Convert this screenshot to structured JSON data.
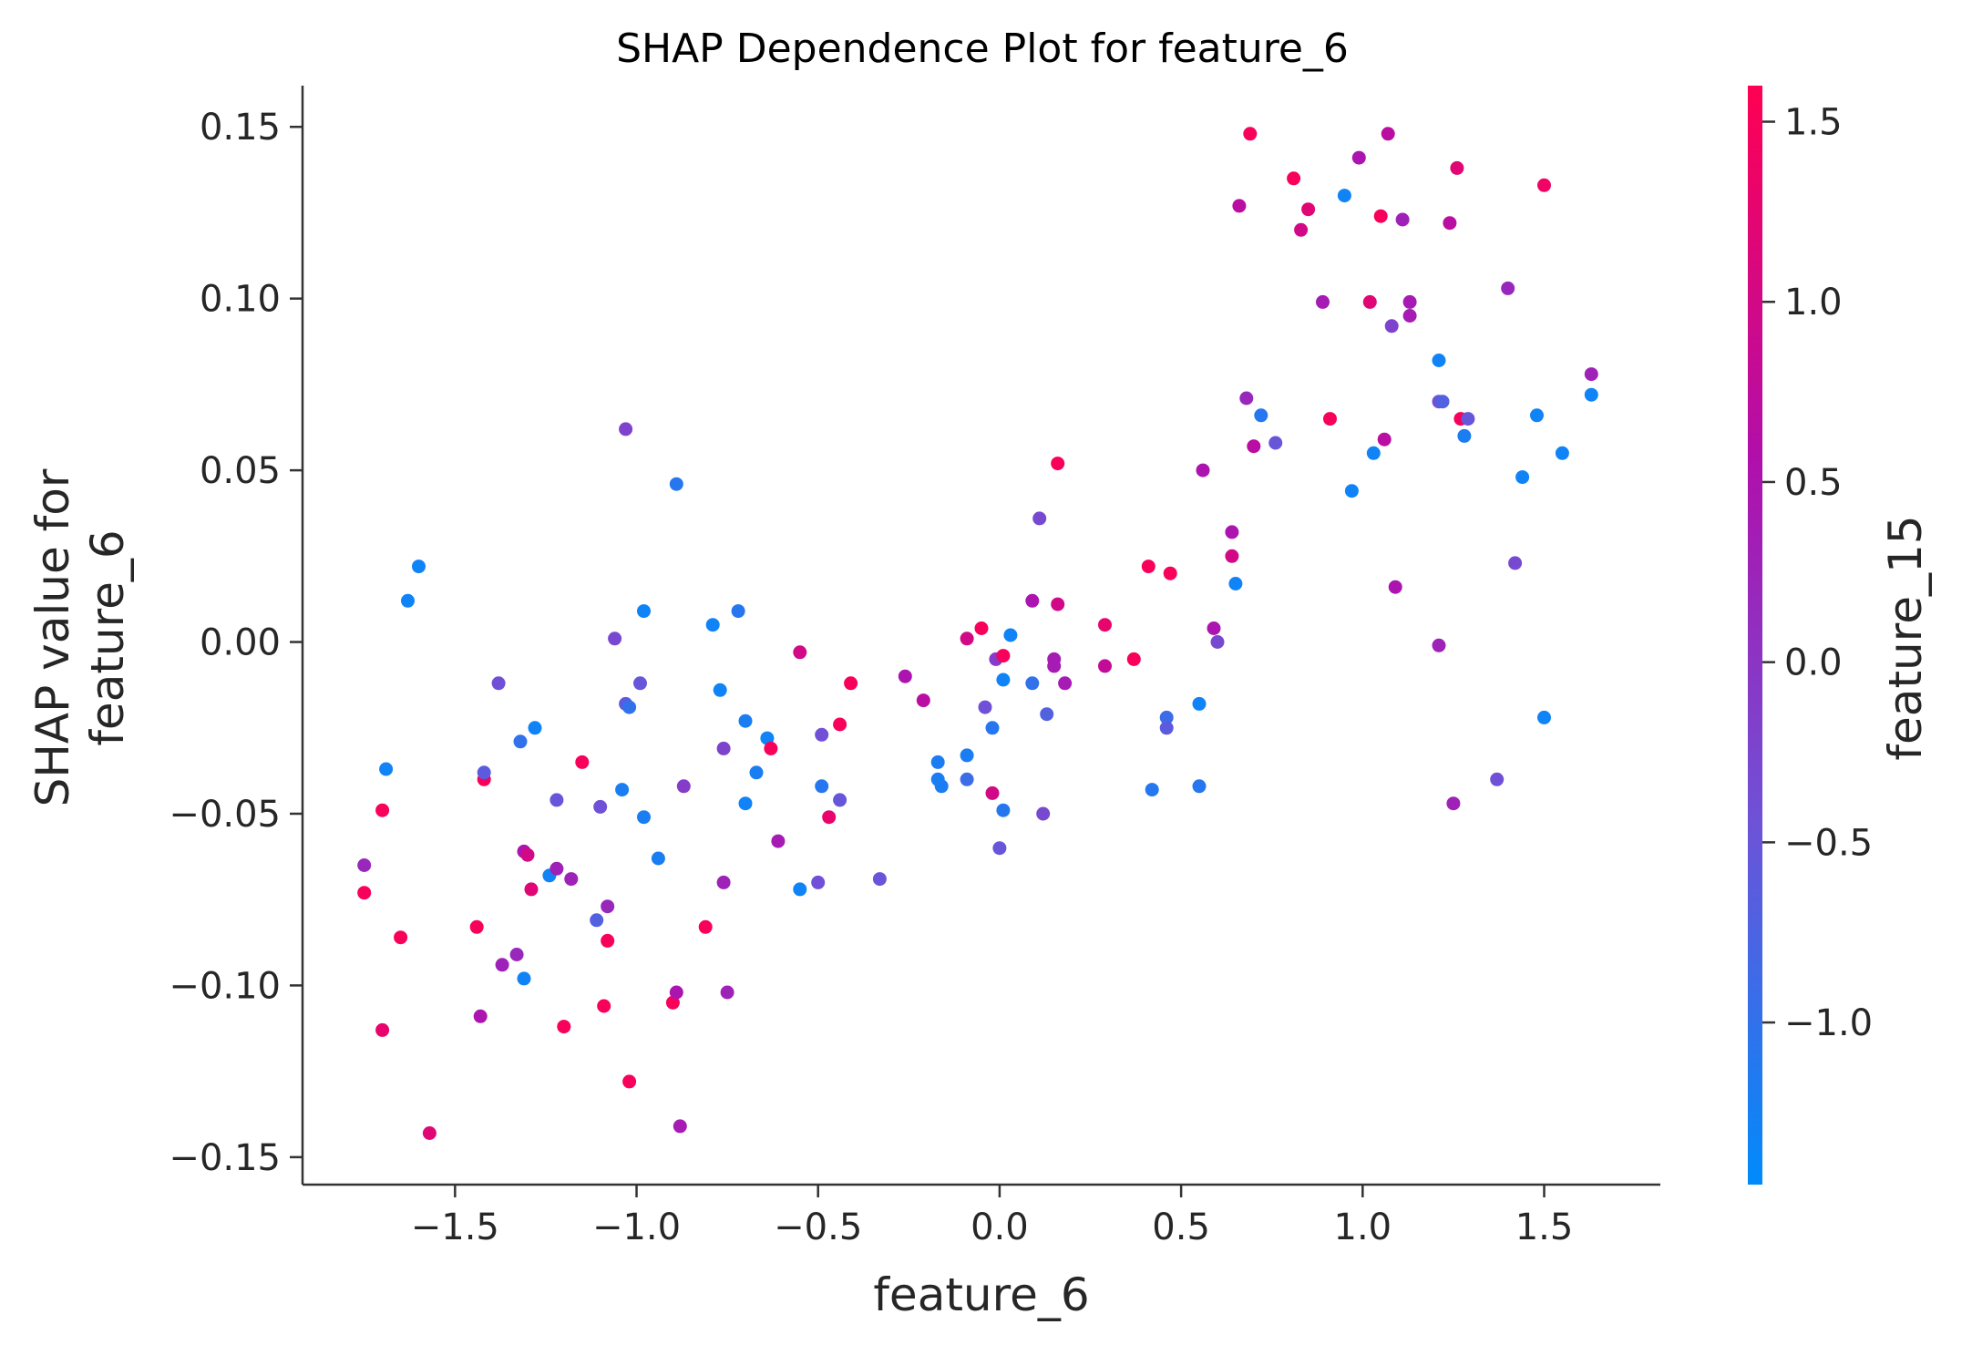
{
  "chart_data": {
    "type": "scatter",
    "title": "SHAP Dependence Plot for feature_6",
    "xlabel": "feature_6",
    "ylabel": [
      "SHAP value for",
      "feature_6"
    ],
    "xlim": [
      -1.92,
      1.82
    ],
    "ylim": [
      -0.158,
      0.162
    ],
    "xticks": [
      -1.5,
      -1.0,
      -0.5,
      0.0,
      0.5,
      1.0,
      1.5
    ],
    "xtick_labels": [
      "−1.5",
      "−1.0",
      "−0.5",
      "0.0",
      "0.5",
      "1.0",
      "1.5"
    ],
    "yticks": [
      0.15,
      0.1,
      0.05,
      0.0,
      -0.05,
      -0.1,
      -0.15
    ],
    "ytick_labels": [
      "0.15",
      "0.10",
      "0.05",
      "0.00",
      "−0.05",
      "−0.10",
      "−0.15"
    ],
    "grid": false,
    "colorbar": {
      "label": "feature_15",
      "range": [
        -1.45,
        1.6
      ],
      "ticks": [
        1.5,
        1.0,
        0.5,
        0.0,
        -0.5,
        -1.0
      ],
      "tick_labels": [
        "1.5",
        "1.0",
        "0.5",
        "0.0",
        "−0.5",
        "−1.0"
      ],
      "colors": [
        "#008bfb",
        "#6e52d7",
        "#b10fab",
        "#ff0052"
      ]
    },
    "points": [
      [
        -1.75,
        -0.065,
        0.2
      ],
      [
        -1.75,
        -0.073,
        1.5
      ],
      [
        -1.7,
        -0.049,
        1.5
      ],
      [
        -1.7,
        -0.113,
        1.3
      ],
      [
        -1.69,
        -0.037,
        -1.3
      ],
      [
        -1.65,
        -0.086,
        1.5
      ],
      [
        -1.63,
        0.012,
        -1.3
      ],
      [
        -1.6,
        0.022,
        -1.3
      ],
      [
        -1.57,
        -0.143,
        1.2
      ],
      [
        -1.44,
        -0.083,
        1.5
      ],
      [
        -1.43,
        -0.109,
        0.5
      ],
      [
        -1.42,
        -0.04,
        1.5
      ],
      [
        -1.42,
        -0.038,
        -0.6
      ],
      [
        -1.38,
        -0.012,
        -0.4
      ],
      [
        -1.37,
        -0.094,
        0.3
      ],
      [
        -1.33,
        -0.091,
        0.2
      ],
      [
        -1.32,
        -0.029,
        -1.0
      ],
      [
        -1.31,
        -0.061,
        0.5
      ],
      [
        -1.31,
        -0.098,
        -1.3
      ],
      [
        -1.3,
        -0.062,
        1.0
      ],
      [
        -1.29,
        -0.072,
        1.2
      ],
      [
        -1.28,
        -0.025,
        -1.3
      ],
      [
        -1.24,
        -0.068,
        -1.3
      ],
      [
        -1.22,
        -0.066,
        0.3
      ],
      [
        -1.22,
        -0.046,
        -0.5
      ],
      [
        -1.2,
        -0.112,
        1.5
      ],
      [
        -1.18,
        -0.069,
        0.3
      ],
      [
        -1.15,
        -0.035,
        1.5
      ],
      [
        -1.11,
        -0.081,
        -0.7
      ],
      [
        -1.1,
        -0.048,
        -0.4
      ],
      [
        -1.09,
        -0.106,
        1.5
      ],
      [
        -1.08,
        -0.087,
        1.5
      ],
      [
        -1.08,
        -0.077,
        0.2
      ],
      [
        -1.06,
        0.001,
        -0.3
      ],
      [
        -1.04,
        -0.043,
        -1.2
      ],
      [
        -1.03,
        0.062,
        -0.2
      ],
      [
        -1.03,
        -0.018,
        -0.6
      ],
      [
        -1.02,
        -0.019,
        -1.0
      ],
      [
        -1.02,
        -0.128,
        1.5
      ],
      [
        -0.99,
        -0.012,
        -0.5
      ],
      [
        -0.98,
        -0.051,
        -1.2
      ],
      [
        -0.98,
        0.009,
        -1.3
      ],
      [
        -0.94,
        -0.063,
        -1.2
      ],
      [
        -0.9,
        -0.105,
        1.5
      ],
      [
        -0.89,
        -0.102,
        0.5
      ],
      [
        -0.89,
        0.046,
        -1.1
      ],
      [
        -0.88,
        -0.141,
        0.4
      ],
      [
        -0.87,
        -0.042,
        -0.1
      ],
      [
        -0.81,
        -0.083,
        1.5
      ],
      [
        -0.79,
        0.005,
        -1.3
      ],
      [
        -0.77,
        -0.014,
        -1.3
      ],
      [
        -0.76,
        -0.031,
        -0.2
      ],
      [
        -0.76,
        -0.07,
        0.3
      ],
      [
        -0.75,
        -0.102,
        0.3
      ],
      [
        -0.72,
        0.009,
        -1.1
      ],
      [
        -0.7,
        -0.023,
        -1.2
      ],
      [
        -0.7,
        -0.047,
        -1.3
      ],
      [
        -0.67,
        -0.038,
        -1.2
      ],
      [
        -0.64,
        -0.028,
        -1.3
      ],
      [
        -0.63,
        -0.031,
        1.5
      ],
      [
        -0.61,
        -0.058,
        0.4
      ],
      [
        -0.55,
        -0.072,
        -1.3
      ],
      [
        -0.55,
        -0.003,
        1.0
      ],
      [
        -0.5,
        -0.07,
        -0.4
      ],
      [
        -0.49,
        -0.027,
        -0.4
      ],
      [
        -0.49,
        -0.042,
        -1.1
      ],
      [
        -0.47,
        -0.051,
        1.3
      ],
      [
        -0.44,
        -0.046,
        -0.5
      ],
      [
        -0.44,
        -0.024,
        1.5
      ],
      [
        -0.41,
        -0.012,
        1.5
      ],
      [
        -0.33,
        -0.069,
        -0.5
      ],
      [
        -0.26,
        -0.01,
        0.5
      ],
      [
        -0.21,
        -0.017,
        0.7
      ],
      [
        -0.17,
        -0.035,
        -1.2
      ],
      [
        -0.17,
        -0.04,
        -1.2
      ],
      [
        -0.16,
        -0.042,
        -1.2
      ],
      [
        -0.09,
        0.001,
        1.0
      ],
      [
        -0.09,
        -0.033,
        -1.2
      ],
      [
        -0.09,
        -0.04,
        -0.9
      ],
      [
        -0.05,
        0.004,
        1.5
      ],
      [
        -0.04,
        -0.019,
        -0.4
      ],
      [
        -0.02,
        -0.044,
        1.0
      ],
      [
        -0.02,
        -0.025,
        -1.1
      ],
      [
        -0.01,
        -0.005,
        -0.1
      ],
      [
        0.0,
        -0.06,
        -0.5
      ],
      [
        0.01,
        -0.049,
        -1.1
      ],
      [
        0.01,
        -0.011,
        -1.3
      ],
      [
        0.01,
        -0.004,
        1.5
      ],
      [
        0.03,
        0.002,
        -1.3
      ],
      [
        0.09,
        0.012,
        0.5
      ],
      [
        0.09,
        -0.012,
        -1.0
      ],
      [
        0.11,
        0.036,
        -0.3
      ],
      [
        0.12,
        -0.05,
        -0.3
      ],
      [
        0.13,
        -0.021,
        -0.7
      ],
      [
        0.15,
        -0.005,
        0.4
      ],
      [
        0.15,
        -0.007,
        0.4
      ],
      [
        0.16,
        0.011,
        1.0
      ],
      [
        0.16,
        0.052,
        1.5
      ],
      [
        0.18,
        -0.012,
        0.4
      ],
      [
        0.29,
        0.005,
        1.3
      ],
      [
        0.29,
        -0.007,
        0.8
      ],
      [
        0.37,
        -0.005,
        1.5
      ],
      [
        0.41,
        0.022,
        1.5
      ],
      [
        0.42,
        -0.043,
        -1.1
      ],
      [
        0.46,
        -0.022,
        -0.9
      ],
      [
        0.46,
        -0.025,
        -0.6
      ],
      [
        0.47,
        0.02,
        1.5
      ],
      [
        0.55,
        -0.042,
        -1.1
      ],
      [
        0.55,
        -0.018,
        -1.3
      ],
      [
        0.56,
        0.05,
        0.5
      ],
      [
        0.59,
        0.004,
        0.5
      ],
      [
        0.6,
        0.0,
        -0.3
      ],
      [
        0.64,
        0.032,
        0.5
      ],
      [
        0.64,
        0.025,
        1.0
      ],
      [
        0.65,
        0.017,
        -1.3
      ],
      [
        0.66,
        0.127,
        0.7
      ],
      [
        0.68,
        0.071,
        0.2
      ],
      [
        0.69,
        0.148,
        1.5
      ],
      [
        0.7,
        0.057,
        0.7
      ],
      [
        0.72,
        0.066,
        -1.1
      ],
      [
        0.76,
        0.058,
        -0.5
      ],
      [
        0.81,
        0.135,
        1.5
      ],
      [
        0.83,
        0.12,
        1.0
      ],
      [
        0.85,
        0.126,
        1.2
      ],
      [
        0.89,
        0.099,
        0.4
      ],
      [
        0.91,
        0.065,
        1.5
      ],
      [
        0.95,
        0.13,
        -1.3
      ],
      [
        0.97,
        0.044,
        -1.3
      ],
      [
        0.99,
        0.141,
        0.5
      ],
      [
        1.02,
        0.099,
        1.2
      ],
      [
        1.03,
        0.055,
        -1.3
      ],
      [
        1.05,
        0.124,
        1.5
      ],
      [
        1.06,
        0.059,
        0.7
      ],
      [
        1.07,
        0.148,
        0.7
      ],
      [
        1.08,
        0.092,
        -0.2
      ],
      [
        1.09,
        0.016,
        0.5
      ],
      [
        1.11,
        0.123,
        0.3
      ],
      [
        1.13,
        0.095,
        0.4
      ],
      [
        1.13,
        0.099,
        0.4
      ],
      [
        1.21,
        0.082,
        -1.3
      ],
      [
        1.21,
        0.07,
        -0.4
      ],
      [
        1.21,
        -0.001,
        0.3
      ],
      [
        1.22,
        0.07,
        -0.7
      ],
      [
        1.24,
        0.122,
        0.7
      ],
      [
        1.25,
        -0.047,
        0.3
      ],
      [
        1.26,
        0.138,
        1.2
      ],
      [
        1.27,
        0.065,
        1.5
      ],
      [
        1.28,
        0.06,
        -1.2
      ],
      [
        1.29,
        0.065,
        -0.5
      ],
      [
        1.37,
        -0.04,
        -0.4
      ],
      [
        1.4,
        0.103,
        0.2
      ],
      [
        1.42,
        0.023,
        -0.3
      ],
      [
        1.44,
        0.048,
        -1.3
      ],
      [
        1.48,
        0.066,
        -1.3
      ],
      [
        1.5,
        -0.022,
        -1.3
      ],
      [
        1.5,
        0.133,
        1.4
      ],
      [
        1.55,
        0.055,
        -1.3
      ],
      [
        1.63,
        0.078,
        0.3
      ],
      [
        1.63,
        0.072,
        -1.3
      ]
    ]
  }
}
